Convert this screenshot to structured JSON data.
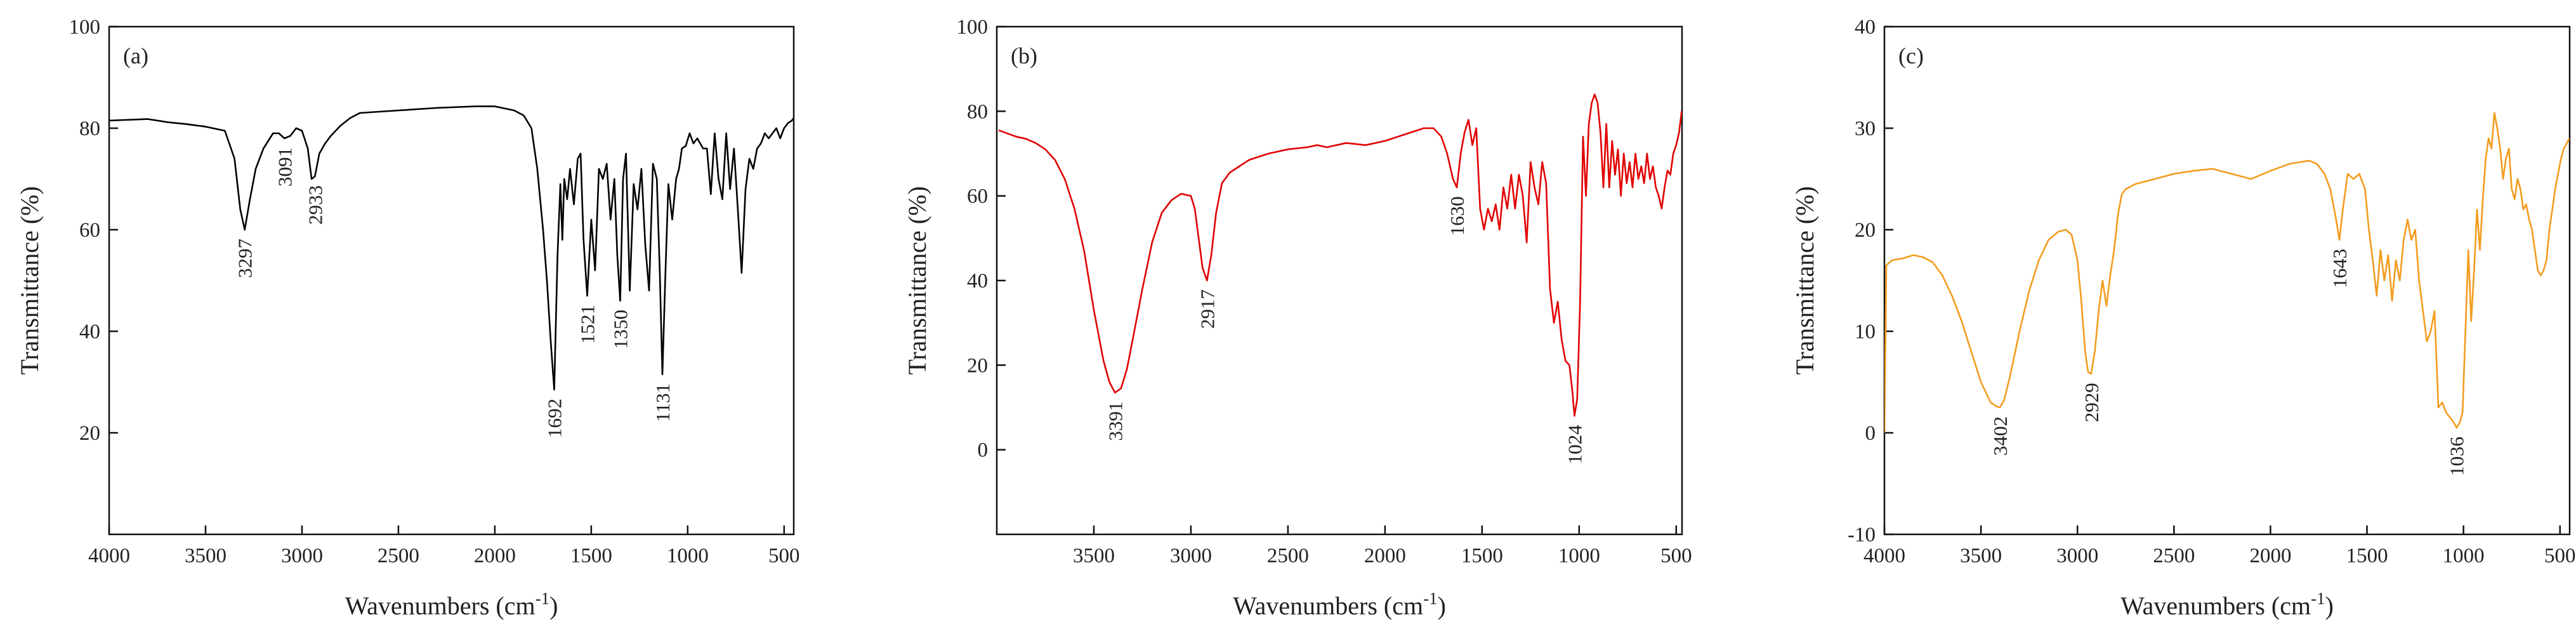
{
  "chart_data": [
    {
      "type": "line",
      "panel_label": "(a)",
      "color": "#000000",
      "xlabel": "Wavenumbers (cm",
      "xlabel_sup": "-1",
      "xlabel_end": ")",
      "ylabel": "Transmittance (%)",
      "xlim": [
        4000,
        450
      ],
      "ylim": [
        0,
        100
      ],
      "xticks": [
        4000,
        3500,
        3000,
        2500,
        2000,
        1500,
        1000,
        500
      ],
      "yticks": [
        20,
        40,
        60,
        80,
        100
      ],
      "peaks": [
        {
          "x": 3297,
          "y": 60,
          "label": "3297"
        },
        {
          "x": 3091,
          "y": 78,
          "label": "3091"
        },
        {
          "x": 2933,
          "y": 70.5,
          "label": "2933"
        },
        {
          "x": 1692,
          "y": 28.5,
          "label": "1692"
        },
        {
          "x": 1521,
          "y": 47,
          "label": "1521"
        },
        {
          "x": 1350,
          "y": 46,
          "label": "1350"
        },
        {
          "x": 1131,
          "y": 31.5,
          "label": "1131"
        }
      ],
      "series": [
        {
          "name": "spectrum",
          "x": [
            4000,
            3800,
            3700,
            3600,
            3500,
            3400,
            3350,
            3320,
            3297,
            3270,
            3240,
            3200,
            3150,
            3120,
            3091,
            3060,
            3030,
            3000,
            2970,
            2950,
            2933,
            2910,
            2880,
            2850,
            2800,
            2750,
            2700,
            2500,
            2300,
            2100,
            2000,
            1900,
            1850,
            1810,
            1780,
            1750,
            1730,
            1710,
            1692,
            1675,
            1660,
            1650,
            1640,
            1625,
            1610,
            1590,
            1570,
            1555,
            1540,
            1521,
            1500,
            1480,
            1460,
            1440,
            1420,
            1400,
            1380,
            1365,
            1350,
            1335,
            1320,
            1300,
            1280,
            1260,
            1240,
            1220,
            1200,
            1180,
            1160,
            1145,
            1131,
            1115,
            1100,
            1080,
            1060,
            1045,
            1030,
            1010,
            990,
            970,
            950,
            920,
            900,
            880,
            860,
            840,
            820,
            800,
            780,
            760,
            740,
            720,
            700,
            680,
            660,
            640,
            620,
            600,
            580,
            560,
            540,
            520,
            500,
            480,
            460,
            450
          ],
          "y": [
            81.5,
            81.8,
            81.2,
            80.8,
            80.3,
            79.5,
            74,
            64,
            60,
            66,
            72,
            76,
            79,
            79,
            78,
            78.5,
            80,
            79.5,
            76,
            70,
            70.5,
            75,
            77,
            78.5,
            80.5,
            82,
            83,
            83.5,
            84,
            84.3,
            84.3,
            83.5,
            82.5,
            80,
            72,
            60,
            50,
            38,
            28.5,
            55,
            69,
            58,
            70,
            66,
            72,
            65,
            74,
            75,
            58,
            47,
            62,
            52,
            72,
            70,
            73,
            62,
            70,
            55,
            46,
            70,
            75,
            48,
            69,
            64,
            72,
            57,
            48,
            73,
            70,
            52,
            31.5,
            52,
            69,
            62,
            70,
            72,
            76,
            76.5,
            79,
            77,
            78,
            76,
            76,
            67,
            79,
            70,
            66,
            79,
            68,
            76,
            64,
            51.5,
            68,
            74,
            72,
            76,
            77,
            79,
            78,
            79,
            80,
            78,
            80,
            81,
            81.5,
            82
          ]
        }
      ]
    },
    {
      "type": "line",
      "panel_label": "(b)",
      "color": "#e00000",
      "xlabel": "Wavenumbers (cm",
      "xlabel_sup": "-1",
      "xlabel_end": ")",
      "ylabel": "Transmittance (%)",
      "xlim": [
        4000,
        470
      ],
      "ylim": [
        -20,
        100
      ],
      "xticks": [
        3500,
        3000,
        2500,
        2000,
        1500,
        1000,
        500
      ],
      "yticks": [
        0,
        20,
        40,
        60,
        80,
        100
      ],
      "peaks": [
        {
          "x": 3391,
          "y": 13.5,
          "label": "3391"
        },
        {
          "x": 2917,
          "y": 40,
          "label": "2917"
        },
        {
          "x": 1630,
          "y": 62,
          "label": "1630"
        },
        {
          "x": 1024,
          "y": 8,
          "label": "1024"
        }
      ],
      "series": [
        {
          "name": "spectrum",
          "x": [
            3990,
            3900,
            3850,
            3800,
            3750,
            3700,
            3650,
            3600,
            3550,
            3500,
            3450,
            3420,
            3391,
            3360,
            3330,
            3300,
            3250,
            3200,
            3150,
            3100,
            3050,
            3000,
            2980,
            2960,
            2940,
            2917,
            2895,
            2870,
            2840,
            2800,
            2750,
            2700,
            2600,
            2500,
            2400,
            2350,
            2300,
            2200,
            2100,
            2000,
            1900,
            1800,
            1750,
            1710,
            1680,
            1650,
            1630,
            1610,
            1590,
            1570,
            1550,
            1530,
            1510,
            1490,
            1470,
            1450,
            1430,
            1410,
            1390,
            1370,
            1350,
            1330,
            1310,
            1290,
            1270,
            1250,
            1230,
            1210,
            1190,
            1170,
            1150,
            1130,
            1110,
            1090,
            1070,
            1050,
            1035,
            1024,
            1010,
            995,
            980,
            965,
            950,
            935,
            920,
            905,
            890,
            875,
            860,
            845,
            830,
            815,
            800,
            785,
            770,
            755,
            740,
            725,
            710,
            695,
            680,
            665,
            650,
            635,
            620,
            605,
            590,
            575,
            560,
            545,
            530,
            515,
            500,
            485,
            472
          ],
          "y": [
            75.5,
            74,
            73.5,
            72.5,
            71,
            68.5,
            64,
            57,
            47,
            33,
            21,
            16,
            13.5,
            14.5,
            19,
            26,
            38,
            49,
            56,
            59,
            60.5,
            60,
            57,
            50,
            43,
            40,
            46,
            56,
            63,
            65.5,
            67,
            68.5,
            70,
            71,
            71.5,
            72,
            71.5,
            72.5,
            72,
            73,
            74.5,
            76,
            76,
            74,
            70,
            64,
            62,
            70,
            75,
            78,
            72,
            76,
            57,
            52,
            57,
            54,
            58,
            52,
            62,
            57,
            65,
            57,
            65,
            60,
            49,
            68,
            62,
            58,
            68,
            63,
            38,
            30,
            35,
            26,
            21,
            20,
            14,
            8,
            12,
            35,
            74,
            60,
            77,
            82,
            84,
            82,
            75,
            62,
            77,
            62,
            73,
            65,
            71,
            60,
            70,
            63,
            68,
            62,
            70,
            64,
            67,
            63,
            70,
            64,
            67,
            62,
            60,
            57,
            62,
            66,
            65,
            70,
            72,
            75,
            80
          ]
        }
      ]
    },
    {
      "type": "line",
      "panel_label": "(c)",
      "color": "#f39c1e",
      "xlabel": "Wavenumbers (cm",
      "xlabel_sup": "-1",
      "xlabel_end": ")",
      "ylabel": "Transmittance (%)",
      "xlim": [
        4000,
        450
      ],
      "ylim": [
        -10,
        40
      ],
      "xticks": [
        4000,
        3500,
        3000,
        2500,
        2000,
        1500,
        1000,
        500
      ],
      "yticks": [
        -10,
        0,
        10,
        20,
        30,
        40
      ],
      "peaks": [
        {
          "x": 3402,
          "y": 2.5,
          "label": "3402"
        },
        {
          "x": 2929,
          "y": 5.8,
          "label": "2929"
        },
        {
          "x": 1643,
          "y": 19,
          "label": "1643"
        },
        {
          "x": 1036,
          "y": 0.5,
          "label": "1036"
        }
      ],
      "series": [
        {
          "name": "spectrum",
          "x": [
            4000,
            3990,
            3960,
            3900,
            3850,
            3800,
            3750,
            3700,
            3650,
            3600,
            3550,
            3500,
            3450,
            3420,
            3402,
            3380,
            3350,
            3300,
            3250,
            3200,
            3150,
            3100,
            3060,
            3030,
            3000,
            2980,
            2960,
            2945,
            2929,
            2910,
            2890,
            2870,
            2850,
            2830,
            2810,
            2790,
            2770,
            2750,
            2700,
            2600,
            2500,
            2400,
            2300,
            2200,
            2100,
            2000,
            1900,
            1800,
            1760,
            1720,
            1690,
            1660,
            1643,
            1625,
            1600,
            1570,
            1540,
            1510,
            1490,
            1470,
            1450,
            1430,
            1410,
            1390,
            1370,
            1350,
            1330,
            1310,
            1290,
            1270,
            1250,
            1230,
            1210,
            1190,
            1170,
            1150,
            1130,
            1110,
            1090,
            1070,
            1050,
            1036,
            1020,
            1005,
            990,
            975,
            960,
            945,
            930,
            915,
            900,
            885,
            870,
            855,
            840,
            825,
            810,
            795,
            780,
            765,
            750,
            735,
            720,
            705,
            690,
            675,
            660,
            645,
            630,
            615,
            600,
            585,
            570,
            555,
            540,
            525,
            510,
            495,
            480,
            465,
            452
          ],
          "y": [
            0,
            16.5,
            17,
            17.2,
            17.5,
            17.3,
            16.8,
            15.5,
            13.5,
            11,
            8,
            5,
            3,
            2.6,
            2.5,
            3.2,
            5.5,
            10,
            14,
            17,
            19,
            19.8,
            20,
            19.5,
            17,
            13,
            8,
            6,
            5.8,
            8,
            12,
            15,
            12.5,
            15.5,
            18,
            21.5,
            23.5,
            24,
            24.5,
            25,
            25.5,
            25.8,
            26,
            25.5,
            25,
            25.8,
            26.5,
            26.8,
            26.5,
            25.5,
            24,
            21,
            19,
            22,
            25.5,
            25,
            25.5,
            24,
            20,
            17,
            13.5,
            18,
            15,
            17.5,
            13,
            17,
            15,
            19,
            21,
            19,
            20,
            15,
            12,
            9,
            10,
            12,
            2.5,
            3,
            2,
            1.5,
            1,
            0.5,
            1,
            2,
            10,
            18,
            11,
            16,
            22,
            18,
            23,
            27,
            29,
            28,
            31.5,
            30,
            28,
            25,
            27,
            28,
            24,
            23,
            25,
            24,
            22,
            22.5,
            21,
            20,
            18,
            16,
            15.5,
            16,
            17,
            20,
            22,
            24,
            25.5,
            27,
            28,
            28.5,
            29
          ]
        }
      ]
    }
  ]
}
